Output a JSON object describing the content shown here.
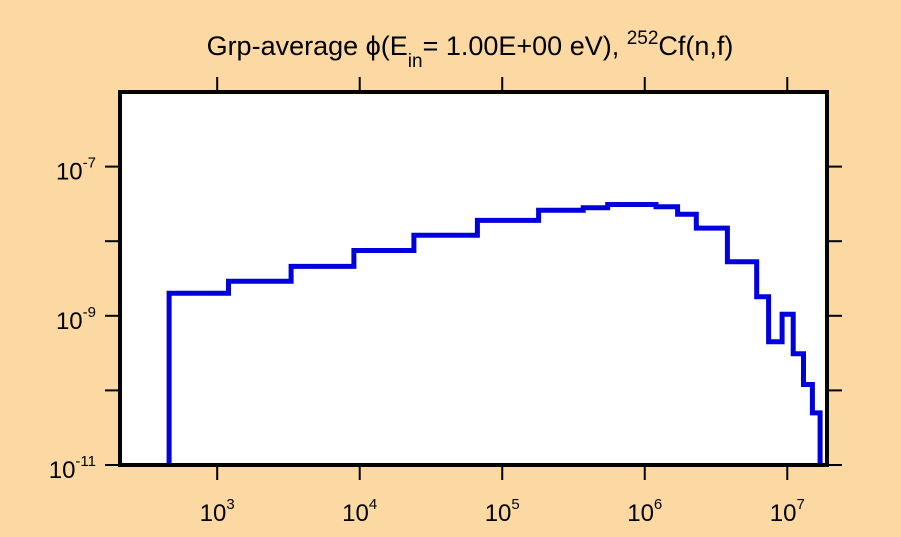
{
  "chart_data": {
    "type": "line",
    "step": true,
    "title": {
      "prefix": "Grp-average ",
      "phi": "ϕ",
      "open": "(E",
      "sub": "in",
      "middle": "= 1.00E+00 eV), ",
      "iso_mass": "252",
      "suffix": "Cf(n,f)"
    },
    "xlabel": "",
    "ylabel": "",
    "x_scale": "log",
    "y_scale": "log",
    "xlim": [
      208,
      19000000
    ],
    "ylim": [
      1e-11,
      1e-06
    ],
    "x_ticks": [
      {
        "base": "10",
        "exp": "3",
        "value": 1000
      },
      {
        "base": "10",
        "exp": "4",
        "value": 10000
      },
      {
        "base": "10",
        "exp": "5",
        "value": 100000
      },
      {
        "base": "10",
        "exp": "6",
        "value": 1000000
      },
      {
        "base": "10",
        "exp": "7",
        "value": 10000000
      }
    ],
    "y_ticks": [
      {
        "base": "10",
        "exp": "-7",
        "value": 1e-07
      },
      {
        "base": "10",
        "exp": "-9",
        "value": 1e-09
      },
      {
        "base": "10",
        "exp": "-11",
        "value": 1e-11
      }
    ],
    "y_minor_ticks": [
      1e-08,
      1e-10
    ],
    "grid": false,
    "colors": {
      "line": "#0000DD",
      "frame": "#000000",
      "plot_bg": "#FFFFFF",
      "page_bg": "#FCD9A3"
    },
    "series": [
      {
        "edges": [
          460,
          1200,
          3300,
          9100,
          24000,
          67000,
          180000,
          370000,
          550000,
          800000,
          1200000,
          1700000,
          2300000,
          3800000,
          6100000,
          7400000,
          9200000,
          11000000,
          13000000,
          15000000,
          17000000
        ],
        "values": [
          2e-09,
          2.9e-09,
          4.6e-09,
          7.5e-09,
          1.2e-08,
          1.9e-08,
          2.6e-08,
          2.8e-08,
          3.1e-08,
          3.1e-08,
          2.9e-08,
          2.3e-08,
          1.5e-08,
          5.3e-09,
          1.8e-09,
          4.5e-10,
          1.05e-09,
          3.1e-10,
          1.2e-10,
          5e-11
        ]
      }
    ]
  }
}
